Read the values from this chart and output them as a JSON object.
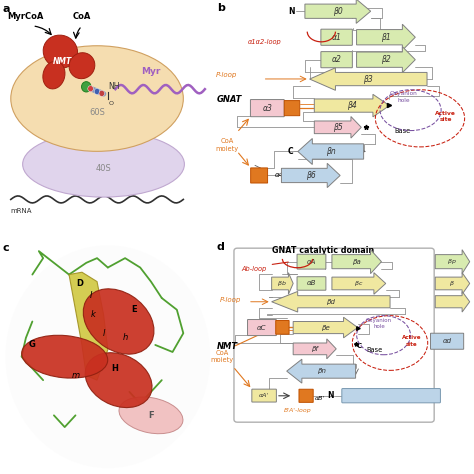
{
  "bg_color": "#ffffff",
  "colors": {
    "yellow_light": "#f0e8a0",
    "yellow_pale": "#f8f4c8",
    "green_light": "#d8ebb0",
    "green_pale": "#eef6d8",
    "pink_light": "#f4c8d0",
    "blue_light": "#bcd4e8",
    "blue_pale": "#d8eaf4",
    "orange": "#e07820",
    "red_loop": "#c82010",
    "red_active": "#c82010",
    "purple": "#7850a0",
    "gray_line": "#909090",
    "coamotif_color": "#e07820",
    "ploop_color": "#e07820",
    "abloop_color": "#c82010",
    "alpha12loop_color": "#c82010",
    "ribosome_60s": "#f5ddb0",
    "ribosome_40s": "#e0d4ec",
    "nmt_red": "#c83020",
    "myr_purple": "#a060c0",
    "green_dot": "#40a040"
  },
  "panel_labels": [
    "a",
    "b",
    "c",
    "d"
  ]
}
